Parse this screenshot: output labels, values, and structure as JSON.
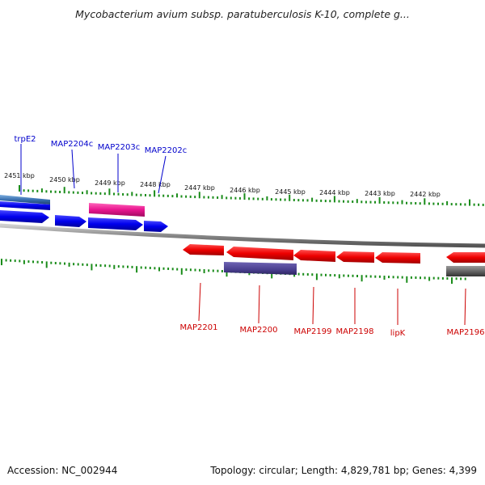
{
  "title": "Mycobacterium avium subsp. paratuberculosis K-10, complete g...",
  "footer": {
    "accession": "Accession: NC_002944",
    "stats": "Topology: circular; Length: 4,829,781 bp; Genes: 4,399"
  },
  "ticks": [
    "2451 kbp",
    "2450 kbp",
    "2449 kbp",
    "2448 kbp",
    "2447 kbp",
    "2446 kbp",
    "2445 kbp",
    "2444 kbp",
    "2443 kbp",
    "2442 kbp"
  ],
  "forward_genes": [
    "trpE2",
    "MAP2204c",
    "MAP2203c",
    "MAP2202c"
  ],
  "reverse_genes": [
    "MAP2201",
    "MAP2200",
    "MAP2199",
    "MAP2198",
    "lipK",
    "MAP2196"
  ],
  "colors": {
    "forward_label": "#0000cc",
    "forward_feature": "#0000ee",
    "reverse_label": "#cc0000",
    "reverse_feature": "#ee0000",
    "pink_feature": "#e8158f",
    "purple_feature": "#4a3f8f",
    "steel_feature": "#3a70b0",
    "gray_feature": "#666666",
    "backbone": "#888888",
    "tick": "#1a8c1a"
  }
}
